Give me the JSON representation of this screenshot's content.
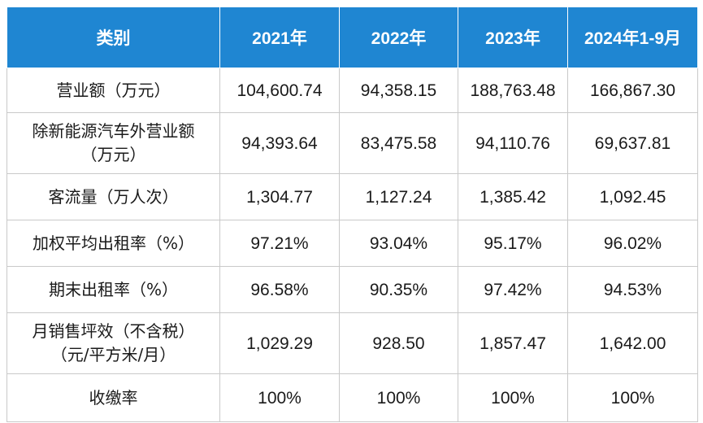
{
  "table": {
    "headers": [
      "类别",
      "2021年",
      "2022年",
      "2023年",
      "2024年1-9月"
    ],
    "rows": [
      {
        "label_lines": [
          "营业额（万元）"
        ],
        "values": [
          "104,600.74",
          "94,358.15",
          "188,763.48",
          "166,867.30"
        ]
      },
      {
        "label_lines": [
          "除新能源汽车外营业额",
          "（万元）"
        ],
        "values": [
          "94,393.64",
          "83,475.58",
          "94,110.76",
          "69,637.81"
        ]
      },
      {
        "label_lines": [
          "客流量（万人次）"
        ],
        "values": [
          "1,304.77",
          "1,127.24",
          "1,385.42",
          "1,092.45"
        ]
      },
      {
        "label_lines": [
          "加权平均出租率（%）"
        ],
        "values": [
          "97.21%",
          "93.04%",
          "95.17%",
          "96.02%"
        ]
      },
      {
        "label_lines": [
          "期末出租率（%）"
        ],
        "values": [
          "96.58%",
          "90.35%",
          "97.42%",
          "94.53%"
        ]
      },
      {
        "label_lines": [
          "月销售坪效（不含税）",
          "（元/平方米/月）"
        ],
        "values": [
          "1,029.29",
          "928.50",
          "1,857.47",
          "1,642.00"
        ]
      },
      {
        "label_lines": [
          "收缴率"
        ],
        "values": [
          "100%",
          "100%",
          "100%",
          "100%"
        ]
      }
    ]
  }
}
